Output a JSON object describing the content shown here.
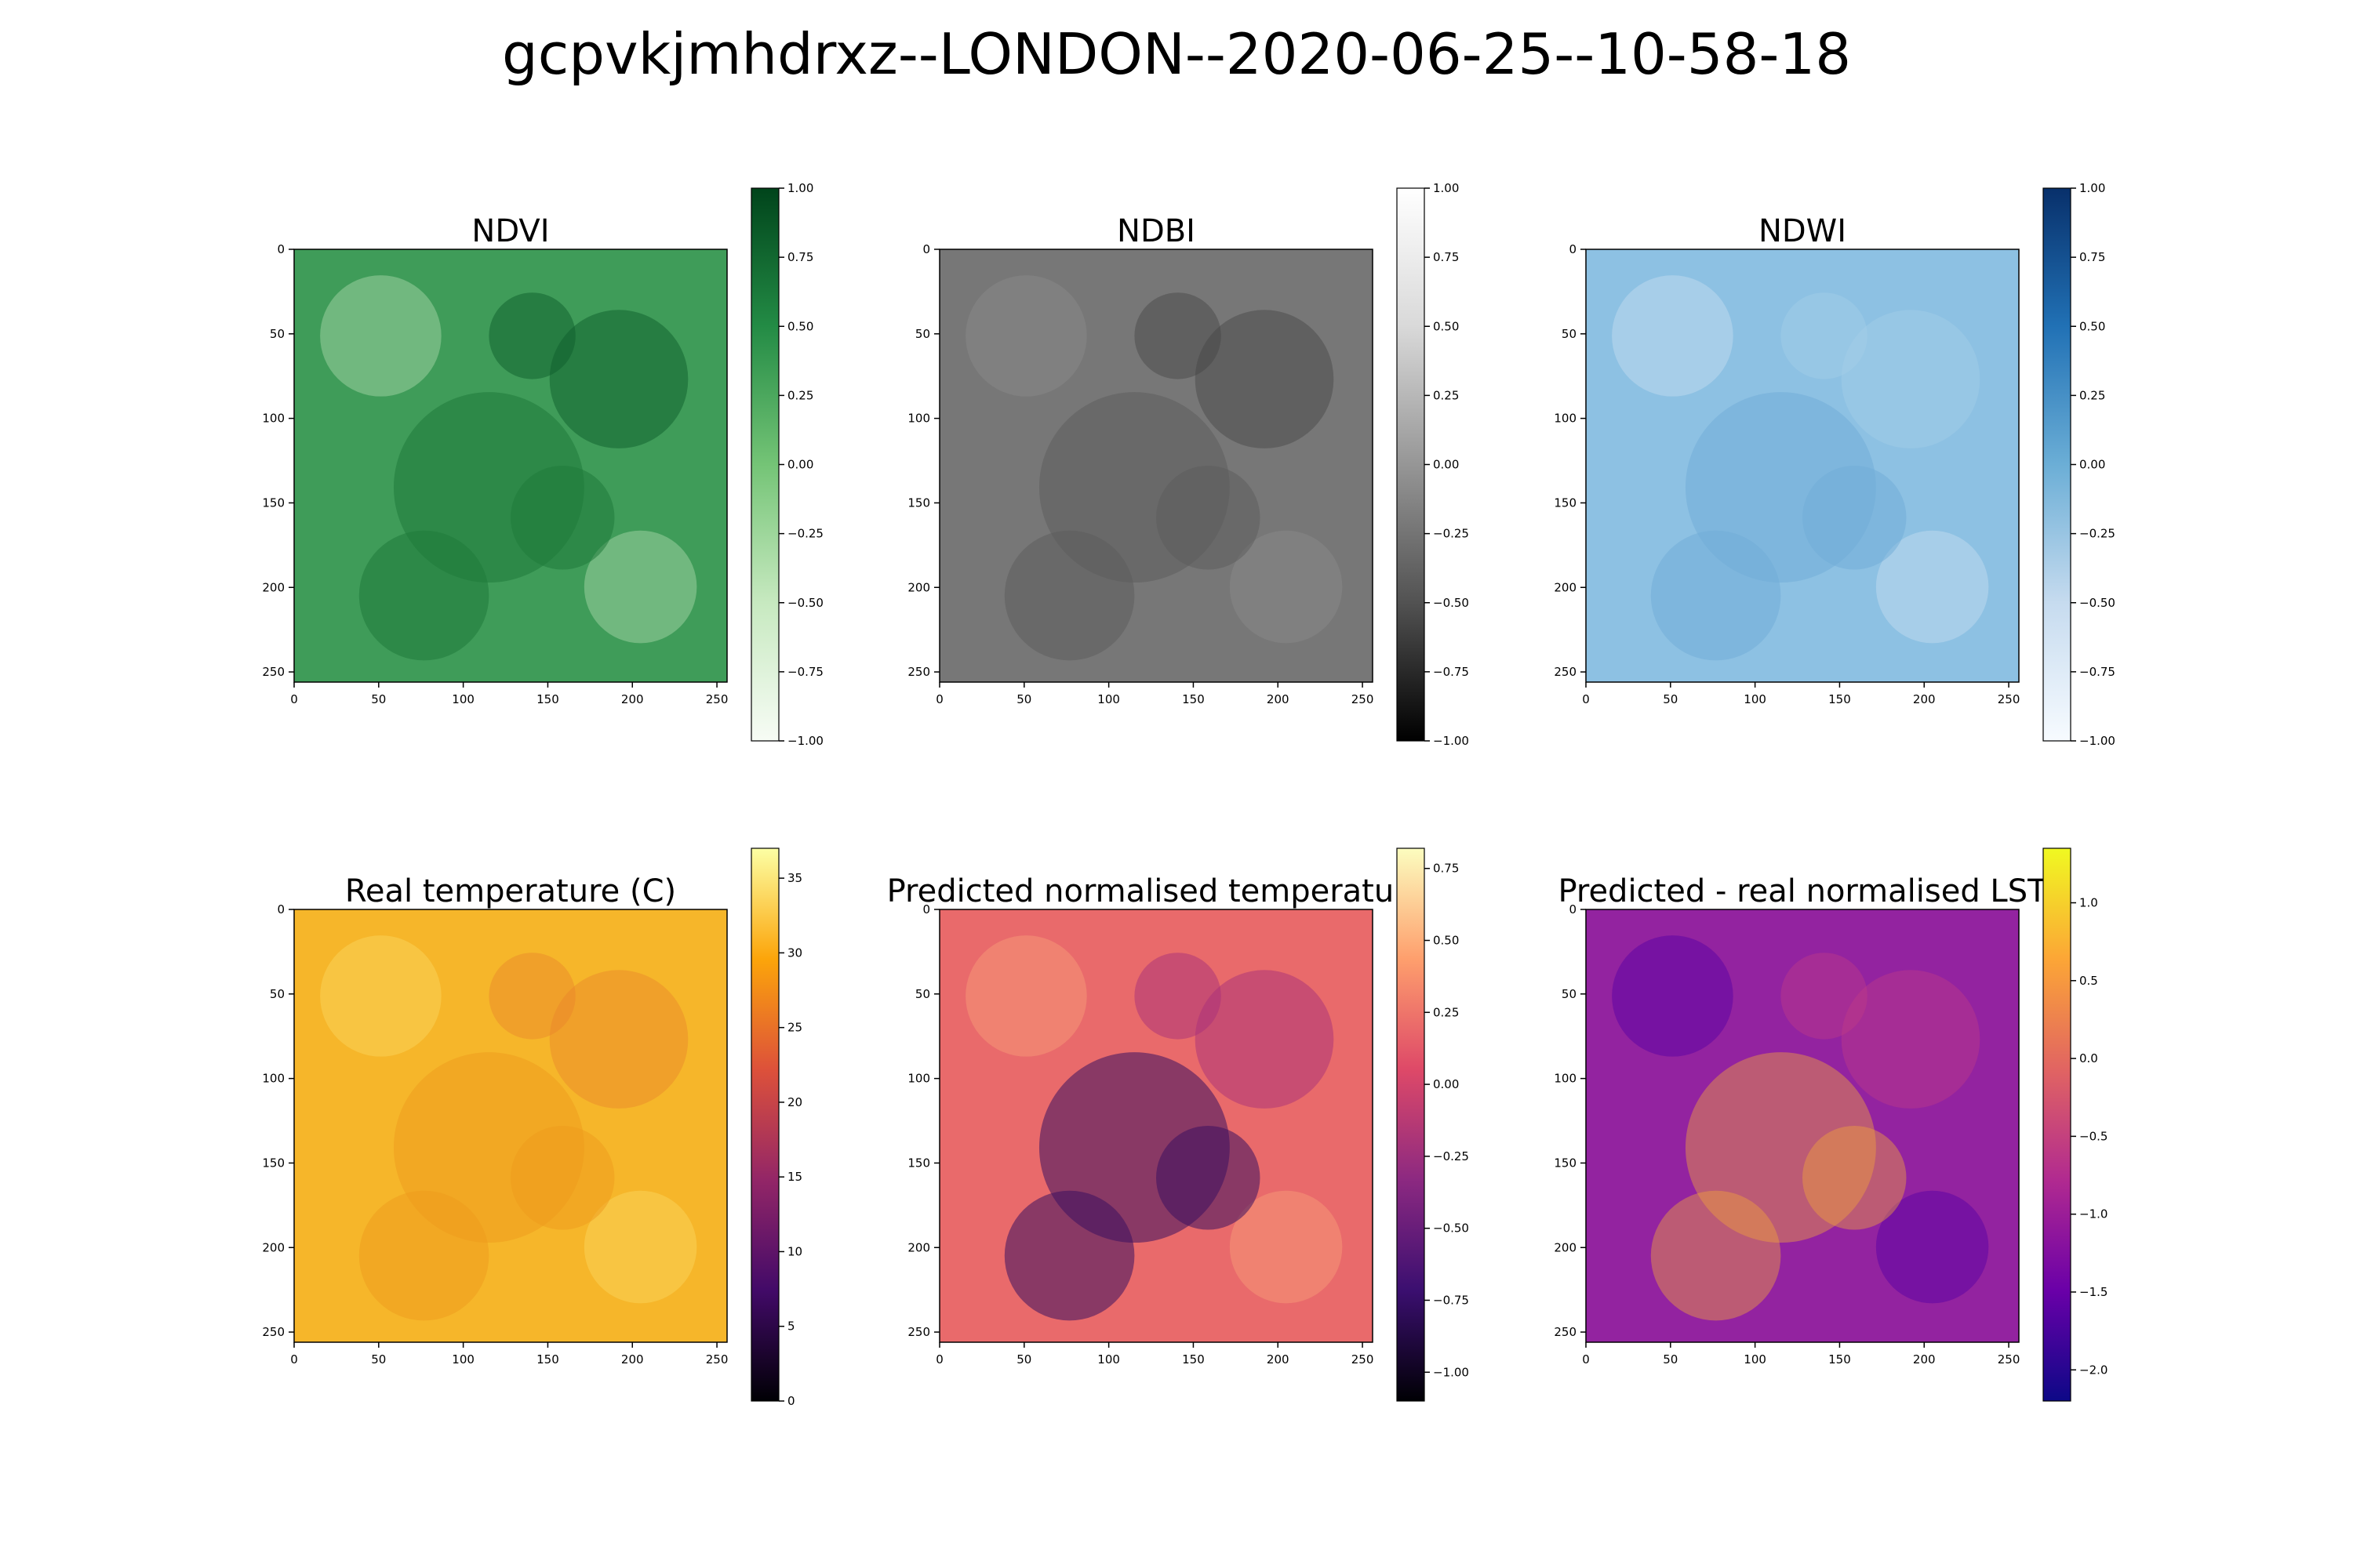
{
  "figure": {
    "title": "gcpvkjmhdrxz--LONDON--2020-06-25--10-58-18"
  },
  "chart_data": [
    {
      "type": "heatmap",
      "title": "NDVI",
      "x_ticks": [
        0,
        50,
        100,
        150,
        200,
        250
      ],
      "y_ticks": [
        0,
        50,
        100,
        150,
        200,
        250
      ],
      "xlim": [
        0,
        256
      ],
      "ylim": [
        256,
        0
      ],
      "colorbar": {
        "colormap": "Greens",
        "range": [
          -1.0,
          1.0
        ],
        "ticks": [
          1.0,
          0.75,
          0.5,
          0.25,
          0.0,
          -0.25,
          -0.5,
          -0.75,
          -1.0
        ],
        "tick_labels": [
          "1.00",
          "0.75",
          "0.50",
          "0.25",
          "0.00",
          "−0.25",
          "−0.50",
          "−0.75",
          "−1.00"
        ]
      }
    },
    {
      "type": "heatmap",
      "title": "NDBI",
      "x_ticks": [
        0,
        50,
        100,
        150,
        200,
        250
      ],
      "y_ticks": [
        0,
        50,
        100,
        150,
        200,
        250
      ],
      "xlim": [
        0,
        256
      ],
      "ylim": [
        256,
        0
      ],
      "colorbar": {
        "colormap": "Greys_r",
        "range": [
          -1.0,
          1.0
        ],
        "ticks": [
          1.0,
          0.75,
          0.5,
          0.25,
          0.0,
          -0.25,
          -0.5,
          -0.75,
          -1.0
        ],
        "tick_labels": [
          "1.00",
          "0.75",
          "0.50",
          "0.25",
          "0.00",
          "−0.25",
          "−0.50",
          "−0.75",
          "−1.00"
        ]
      }
    },
    {
      "type": "heatmap",
      "title": "NDWI",
      "x_ticks": [
        0,
        50,
        100,
        150,
        200,
        250
      ],
      "y_ticks": [
        0,
        50,
        100,
        150,
        200,
        250
      ],
      "xlim": [
        0,
        256
      ],
      "ylim": [
        256,
        0
      ],
      "colorbar": {
        "colormap": "Blues",
        "range": [
          -1.0,
          1.0
        ],
        "ticks": [
          1.0,
          0.75,
          0.5,
          0.25,
          0.0,
          -0.25,
          -0.5,
          -0.75,
          -1.0
        ],
        "tick_labels": [
          "1.00",
          "0.75",
          "0.50",
          "0.25",
          "0.00",
          "−0.25",
          "−0.50",
          "−0.75",
          "−1.00"
        ]
      }
    },
    {
      "type": "heatmap",
      "title": "Real temperature (C)",
      "x_ticks": [
        0,
        50,
        100,
        150,
        200,
        250
      ],
      "y_ticks": [
        0,
        50,
        100,
        150,
        200,
        250
      ],
      "xlim": [
        0,
        256
      ],
      "ylim": [
        256,
        0
      ],
      "colorbar": {
        "colormap": "inferno",
        "range": [
          0,
          37
        ],
        "ticks": [
          35,
          30,
          25,
          20,
          15,
          10,
          5,
          0
        ],
        "tick_labels": [
          "35",
          "30",
          "25",
          "20",
          "15",
          "10",
          "5",
          "0"
        ]
      }
    },
    {
      "type": "heatmap",
      "title": "Predicted normalised temperature",
      "x_ticks": [
        0,
        50,
        100,
        150,
        200,
        250
      ],
      "y_ticks": [
        0,
        50,
        100,
        150,
        200,
        250
      ],
      "xlim": [
        0,
        256
      ],
      "ylim": [
        256,
        0
      ],
      "colorbar": {
        "colormap": "magma",
        "range": [
          -1.1,
          0.82
        ],
        "ticks": [
          0.75,
          0.5,
          0.25,
          0.0,
          -0.25,
          -0.5,
          -0.75,
          -1.0
        ],
        "tick_labels": [
          "0.75",
          "0.50",
          "0.25",
          "0.00",
          "−0.25",
          "−0.50",
          "−0.75",
          "−1.00"
        ]
      }
    },
    {
      "type": "heatmap",
      "title": "Predicted - real normalised LST",
      "x_ticks": [
        0,
        50,
        100,
        150,
        200,
        250
      ],
      "y_ticks": [
        0,
        50,
        100,
        150,
        200,
        250
      ],
      "xlim": [
        0,
        256
      ],
      "ylim": [
        256,
        0
      ],
      "colorbar": {
        "colormap": "plasma",
        "range": [
          -2.2,
          1.35
        ],
        "ticks": [
          1.0,
          0.5,
          0.0,
          -0.5,
          -1.0,
          -1.5,
          -2.0
        ],
        "tick_labels": [
          "1.0",
          "0.5",
          "0.0",
          "−0.5",
          "−1.0",
          "−1.5",
          "−2.0"
        ]
      }
    }
  ]
}
